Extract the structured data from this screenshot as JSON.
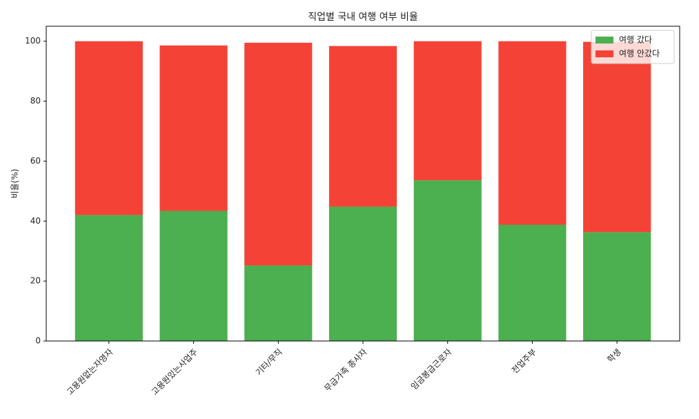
{
  "chart_data": {
    "type": "stacked-bar",
    "title": "직업별 국내 여행 여부 비율",
    "y_label": "비율(%)",
    "categories": [
      "고용원없는자영자",
      "고용원있는사업주",
      "기타/무직",
      "무급가족 종사자",
      "임금봉급근로자",
      "전업주부",
      "학생"
    ],
    "series": [
      {
        "name": "여행 갔다",
        "color": "#4caf50",
        "values": [
          42.0,
          43.4,
          25.2,
          44.8,
          53.6,
          38.8,
          36.3
        ]
      },
      {
        "name": "여행 안갔다",
        "color": "#f44336",
        "values": [
          58.0,
          55.2,
          74.3,
          53.6,
          46.4,
          61.2,
          63.5
        ]
      }
    ],
    "ylim": [
      0,
      105
    ],
    "yticks": [
      0,
      20,
      40,
      60,
      80,
      100
    ],
    "legend": "upper right"
  }
}
